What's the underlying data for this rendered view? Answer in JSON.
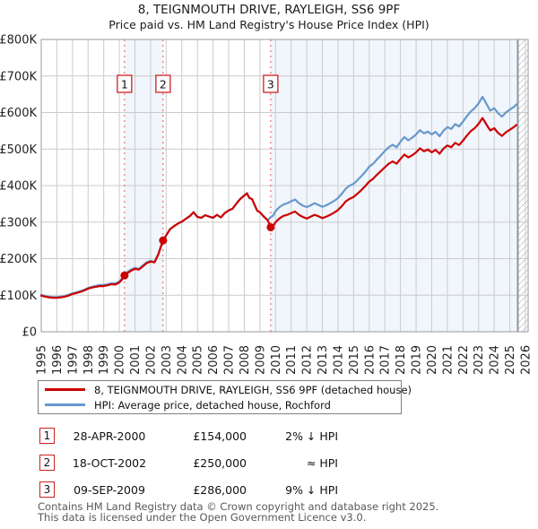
{
  "header": {
    "title": "8, TEIGNMOUTH DRIVE, RAYLEIGH, SS6 9PF",
    "subtitle": "Price paid vs. HM Land Registry's House Price Index (HPI)"
  },
  "chart_data": {
    "type": "line",
    "title": "8, TEIGNMOUTH DRIVE, RAYLEIGH, SS6 9PF",
    "subtitle": "Price paid vs. HM Land Registry's House Price Index (HPI)",
    "units": "GBP thousands",
    "x_start": 1995,
    "x_end": 2026.17,
    "ylim_k": [
      0,
      800
    ],
    "grid": true,
    "y_ticks": [
      {
        "v": 0,
        "label": "£0"
      },
      {
        "v": 100,
        "label": "£100K"
      },
      {
        "v": 200,
        "label": "£200K"
      },
      {
        "v": 300,
        "label": "£300K"
      },
      {
        "v": 400,
        "label": "£400K"
      },
      {
        "v": 500,
        "label": "£500K"
      },
      {
        "v": 600,
        "label": "£600K"
      },
      {
        "v": 700,
        "label": "£700K"
      },
      {
        "v": 800,
        "label": "£800K"
      }
    ],
    "x_ticks": [
      1995,
      1996,
      1997,
      1998,
      1999,
      2000,
      2001,
      2002,
      2003,
      2004,
      2005,
      2006,
      2007,
      2008,
      2009,
      2010,
      2011,
      2012,
      2013,
      2014,
      2015,
      2016,
      2017,
      2018,
      2019,
      2020,
      2021,
      2022,
      2023,
      2024,
      2025,
      2026
    ],
    "ownership_bands": [
      [
        2000.33,
        2002.8
      ],
      [
        2009.69,
        2025.51
      ]
    ],
    "future_start": 2025.51,
    "colors": {
      "price": "#cc0000",
      "hpi": "#6699cc",
      "band": "#f1f5fc",
      "grid": "#cbcbcb",
      "border": "#9a9a9a",
      "dashed": "#e05a5a",
      "hatch": "#c8ccd4",
      "future_edge": "#8f959e"
    },
    "sales": [
      {
        "label": "1",
        "year": 2000.33,
        "price_k": 154,
        "date": "28-APR-2000"
      },
      {
        "label": "2",
        "year": 2002.8,
        "price_k": 250,
        "date": "18-OCT-2002"
      },
      {
        "label": "3",
        "year": 2009.69,
        "price_k": 286,
        "date": "09-SEP-2009"
      }
    ],
    "series": [
      {
        "name": "HPI: Average price, detached house, Rochford",
        "color": "#6699cc",
        "points": [
          [
            1995.0,
            101
          ],
          [
            1995.25,
            98
          ],
          [
            1995.5,
            96
          ],
          [
            1995.75,
            95
          ],
          [
            1996.0,
            95
          ],
          [
            1996.25,
            96
          ],
          [
            1996.5,
            98
          ],
          [
            1996.75,
            101
          ],
          [
            1997.0,
            105
          ],
          [
            1997.25,
            108
          ],
          [
            1997.5,
            111
          ],
          [
            1997.75,
            115
          ],
          [
            1998.0,
            120
          ],
          [
            1998.25,
            123
          ],
          [
            1998.5,
            126
          ],
          [
            1998.75,
            128
          ],
          [
            1999.0,
            128
          ],
          [
            1999.25,
            130
          ],
          [
            1999.5,
            133
          ],
          [
            1999.75,
            132
          ],
          [
            2000.0,
            138
          ],
          [
            2000.17,
            146
          ],
          [
            2000.33,
            157
          ],
          [
            2000.5,
            163
          ],
          [
            2000.75,
            170
          ],
          [
            2001.0,
            175
          ],
          [
            2001.25,
            172
          ],
          [
            2001.5,
            181
          ],
          [
            2001.75,
            190
          ],
          [
            2002.0,
            194
          ],
          [
            2002.25,
            191
          ],
          [
            2002.5,
            213
          ],
          [
            2002.67,
            235
          ],
          [
            2002.8,
            250
          ],
          [
            2003.0,
            264
          ],
          [
            2003.25,
            281
          ],
          [
            2003.5,
            289
          ],
          [
            2003.75,
            296
          ],
          [
            2004.0,
            301
          ],
          [
            2004.25,
            309
          ],
          [
            2004.5,
            316
          ],
          [
            2004.75,
            327
          ],
          [
            2005.0,
            314
          ],
          [
            2005.25,
            312
          ],
          [
            2005.5,
            319
          ],
          [
            2005.75,
            315
          ],
          [
            2006.0,
            312
          ],
          [
            2006.25,
            320
          ],
          [
            2006.5,
            313
          ],
          [
            2006.75,
            325
          ],
          [
            2007.0,
            332
          ],
          [
            2007.25,
            337
          ],
          [
            2007.5,
            351
          ],
          [
            2007.75,
            364
          ],
          [
            2008.0,
            373
          ],
          [
            2008.17,
            379
          ],
          [
            2008.33,
            366
          ],
          [
            2008.5,
            363
          ],
          [
            2008.67,
            346
          ],
          [
            2008.83,
            331
          ],
          [
            2009.0,
            327
          ],
          [
            2009.25,
            315
          ],
          [
            2009.5,
            305
          ],
          [
            2009.69,
            314
          ],
          [
            2009.83,
            317
          ],
          [
            2010.0,
            330
          ],
          [
            2010.25,
            341
          ],
          [
            2010.5,
            348
          ],
          [
            2010.75,
            352
          ],
          [
            2011.0,
            357
          ],
          [
            2011.25,
            362
          ],
          [
            2011.5,
            352
          ],
          [
            2011.75,
            345
          ],
          [
            2012.0,
            341
          ],
          [
            2012.25,
            346
          ],
          [
            2012.5,
            352
          ],
          [
            2012.75,
            347
          ],
          [
            2013.0,
            342
          ],
          [
            2013.25,
            346
          ],
          [
            2013.5,
            352
          ],
          [
            2013.75,
            358
          ],
          [
            2014.0,
            366
          ],
          [
            2014.25,
            378
          ],
          [
            2014.5,
            392
          ],
          [
            2014.75,
            400
          ],
          [
            2015.0,
            405
          ],
          [
            2015.25,
            415
          ],
          [
            2015.5,
            426
          ],
          [
            2015.75,
            438
          ],
          [
            2016.0,
            452
          ],
          [
            2016.25,
            460
          ],
          [
            2016.5,
            472
          ],
          [
            2016.75,
            483
          ],
          [
            2017.0,
            495
          ],
          [
            2017.25,
            505
          ],
          [
            2017.5,
            512
          ],
          [
            2017.75,
            505
          ],
          [
            2018.0,
            520
          ],
          [
            2018.25,
            533
          ],
          [
            2018.5,
            524
          ],
          [
            2018.75,
            531
          ],
          [
            2019.0,
            540
          ],
          [
            2019.25,
            552
          ],
          [
            2019.5,
            543
          ],
          [
            2019.75,
            548
          ],
          [
            2020.0,
            540
          ],
          [
            2020.25,
            547
          ],
          [
            2020.5,
            535
          ],
          [
            2020.75,
            550
          ],
          [
            2021.0,
            560
          ],
          [
            2021.25,
            555
          ],
          [
            2021.5,
            568
          ],
          [
            2021.75,
            562
          ],
          [
            2022.0,
            575
          ],
          [
            2022.25,
            590
          ],
          [
            2022.5,
            603
          ],
          [
            2022.75,
            612
          ],
          [
            2023.0,
            625
          ],
          [
            2023.25,
            643
          ],
          [
            2023.42,
            630
          ],
          [
            2023.58,
            618
          ],
          [
            2023.75,
            605
          ],
          [
            2024.0,
            612
          ],
          [
            2024.25,
            598
          ],
          [
            2024.5,
            589
          ],
          [
            2024.75,
            600
          ],
          [
            2025.0,
            608
          ],
          [
            2025.25,
            615
          ],
          [
            2025.42,
            622
          ]
        ]
      },
      {
        "name": "8, TEIGNMOUTH DRIVE, RAYLEIGH, SS6 9PF (detached house)",
        "color": "#cc0000",
        "points": [
          [
            1995.0,
            99
          ],
          [
            1995.25,
            96
          ],
          [
            1995.5,
            94
          ],
          [
            1995.75,
            93
          ],
          [
            1996.0,
            93
          ],
          [
            1996.25,
            94
          ],
          [
            1996.5,
            96
          ],
          [
            1996.75,
            99
          ],
          [
            1997.0,
            103
          ],
          [
            1997.25,
            106
          ],
          [
            1997.5,
            109
          ],
          [
            1997.75,
            113
          ],
          [
            1998.0,
            118
          ],
          [
            1998.25,
            121
          ],
          [
            1998.5,
            123
          ],
          [
            1998.75,
            125
          ],
          [
            1999.0,
            125
          ],
          [
            1999.25,
            127
          ],
          [
            1999.5,
            130
          ],
          [
            1999.75,
            129
          ],
          [
            2000.0,
            135
          ],
          [
            2000.17,
            143
          ],
          [
            2000.33,
            154
          ],
          [
            2000.5,
            160
          ],
          [
            2000.75,
            167
          ],
          [
            2001.0,
            172
          ],
          [
            2001.25,
            170
          ],
          [
            2001.5,
            179
          ],
          [
            2001.75,
            188
          ],
          [
            2002.0,
            192
          ],
          [
            2002.25,
            190
          ],
          [
            2002.5,
            212
          ],
          [
            2002.67,
            234
          ],
          [
            2002.8,
            250
          ],
          [
            2003.0,
            264
          ],
          [
            2003.25,
            281
          ],
          [
            2003.5,
            289
          ],
          [
            2003.75,
            296
          ],
          [
            2004.0,
            301
          ],
          [
            2004.25,
            309
          ],
          [
            2004.5,
            316
          ],
          [
            2004.75,
            327
          ],
          [
            2005.0,
            314
          ],
          [
            2005.25,
            312
          ],
          [
            2005.5,
            319
          ],
          [
            2005.75,
            315
          ],
          [
            2006.0,
            312
          ],
          [
            2006.25,
            320
          ],
          [
            2006.5,
            313
          ],
          [
            2006.75,
            325
          ],
          [
            2007.0,
            332
          ],
          [
            2007.25,
            337
          ],
          [
            2007.5,
            351
          ],
          [
            2007.75,
            364
          ],
          [
            2008.0,
            373
          ],
          [
            2008.17,
            379
          ],
          [
            2008.33,
            366
          ],
          [
            2008.5,
            363
          ],
          [
            2008.67,
            346
          ],
          [
            2008.83,
            331
          ],
          [
            2009.0,
            327
          ],
          [
            2009.25,
            315
          ],
          [
            2009.5,
            305
          ],
          [
            2009.69,
            286
          ],
          [
            2009.83,
            288
          ],
          [
            2010.0,
            300
          ],
          [
            2010.25,
            310
          ],
          [
            2010.5,
            317
          ],
          [
            2010.75,
            320
          ],
          [
            2011.0,
            325
          ],
          [
            2011.25,
            329
          ],
          [
            2011.5,
            320
          ],
          [
            2011.75,
            314
          ],
          [
            2012.0,
            310
          ],
          [
            2012.25,
            315
          ],
          [
            2012.5,
            320
          ],
          [
            2012.75,
            316
          ],
          [
            2013.0,
            311
          ],
          [
            2013.25,
            315
          ],
          [
            2013.5,
            320
          ],
          [
            2013.75,
            326
          ],
          [
            2014.0,
            333
          ],
          [
            2014.25,
            344
          ],
          [
            2014.5,
            357
          ],
          [
            2014.75,
            364
          ],
          [
            2015.0,
            369
          ],
          [
            2015.25,
            378
          ],
          [
            2015.5,
            388
          ],
          [
            2015.75,
            399
          ],
          [
            2016.0,
            411
          ],
          [
            2016.25,
            419
          ],
          [
            2016.5,
            430
          ],
          [
            2016.75,
            440
          ],
          [
            2017.0,
            450
          ],
          [
            2017.25,
            460
          ],
          [
            2017.5,
            466
          ],
          [
            2017.75,
            460
          ],
          [
            2018.0,
            473
          ],
          [
            2018.25,
            485
          ],
          [
            2018.5,
            477
          ],
          [
            2018.75,
            483
          ],
          [
            2019.0,
            491
          ],
          [
            2019.25,
            502
          ],
          [
            2019.5,
            494
          ],
          [
            2019.75,
            499
          ],
          [
            2020.0,
            491
          ],
          [
            2020.25,
            498
          ],
          [
            2020.5,
            487
          ],
          [
            2020.75,
            501
          ],
          [
            2021.0,
            510
          ],
          [
            2021.25,
            505
          ],
          [
            2021.5,
            517
          ],
          [
            2021.75,
            511
          ],
          [
            2022.0,
            523
          ],
          [
            2022.25,
            537
          ],
          [
            2022.5,
            549
          ],
          [
            2022.75,
            557
          ],
          [
            2023.0,
            569
          ],
          [
            2023.25,
            585
          ],
          [
            2023.42,
            573
          ],
          [
            2023.58,
            562
          ],
          [
            2023.75,
            551
          ],
          [
            2024.0,
            557
          ],
          [
            2024.25,
            544
          ],
          [
            2024.5,
            536
          ],
          [
            2024.75,
            546
          ],
          [
            2025.0,
            553
          ],
          [
            2025.25,
            560
          ],
          [
            2025.42,
            566
          ]
        ]
      }
    ],
    "legend_position": "bottom"
  },
  "legend": {
    "items": [
      {
        "label": "8, TEIGNMOUTH DRIVE, RAYLEIGH, SS6 9PF (detached house)",
        "color": "#cc0000"
      },
      {
        "label": "HPI: Average price, detached house, Rochford",
        "color": "#6699cc"
      }
    ]
  },
  "transactions": [
    {
      "num": "1",
      "date": "28-APR-2000",
      "price": "£154,000",
      "vs_hpi": "2% ↓ HPI"
    },
    {
      "num": "2",
      "date": "18-OCT-2002",
      "price": "£250,000",
      "vs_hpi": "≈ HPI"
    },
    {
      "num": "3",
      "date": "09-SEP-2009",
      "price": "£286,000",
      "vs_hpi": "9% ↓ HPI"
    }
  ],
  "footer": {
    "line1": "Contains HM Land Registry data © Crown copyright and database right 2025.",
    "line2": "This data is licensed under the Open Government Licence v3.0."
  }
}
